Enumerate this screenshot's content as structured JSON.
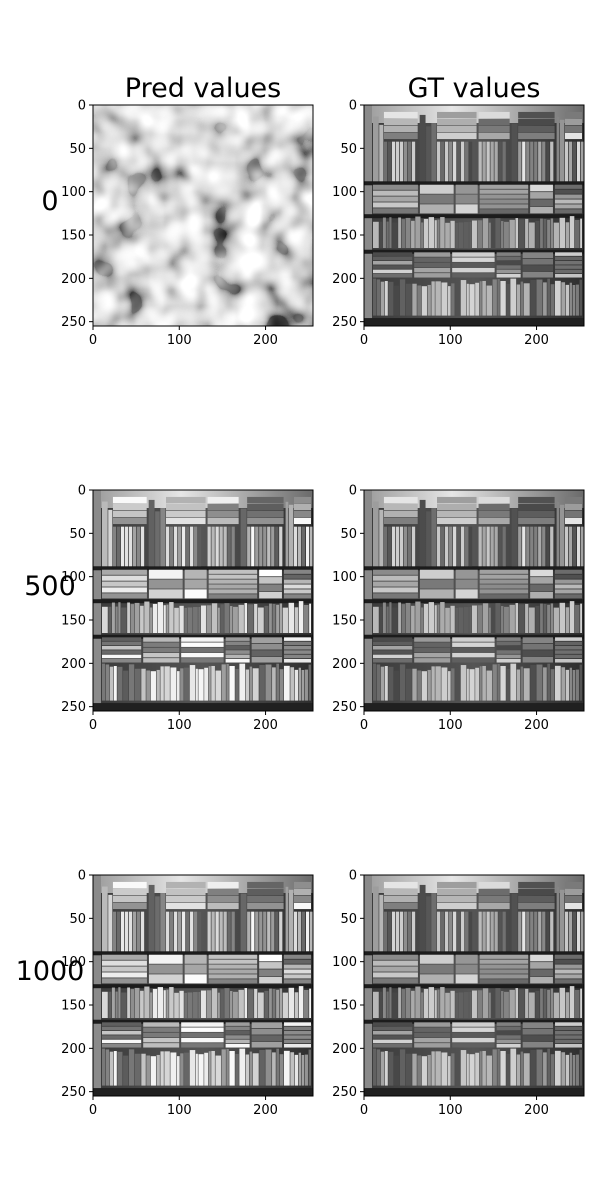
{
  "chart_data": {
    "type": "image-grid",
    "column_titles": [
      "Pred values",
      "GT values"
    ],
    "row_labels": [
      "0",
      "500",
      "1000"
    ],
    "x_ticks": [
      "0",
      "100",
      "200"
    ],
    "y_ticks": [
      "0",
      "50",
      "100",
      "150",
      "200",
      "250"
    ],
    "x_tick_values": [
      0,
      100,
      200
    ],
    "y_tick_values": [
      0,
      50,
      100,
      150,
      200,
      250
    ],
    "xlim": [
      0,
      255
    ],
    "ylim": [
      255,
      0
    ],
    "image_size": [
      256,
      256
    ],
    "colormap": "gray",
    "panels": [
      {
        "row": "0",
        "column": "Pred values",
        "content": "noise"
      },
      {
        "row": "0",
        "column": "GT values",
        "content": "bookshelf"
      },
      {
        "row": "500",
        "column": "Pred values",
        "content": "bookshelf"
      },
      {
        "row": "500",
        "column": "GT values",
        "content": "bookshelf"
      },
      {
        "row": "1000",
        "column": "Pred values",
        "content": "bookshelf"
      },
      {
        "row": "1000",
        "column": "GT values",
        "content": "bookshelf"
      }
    ]
  }
}
